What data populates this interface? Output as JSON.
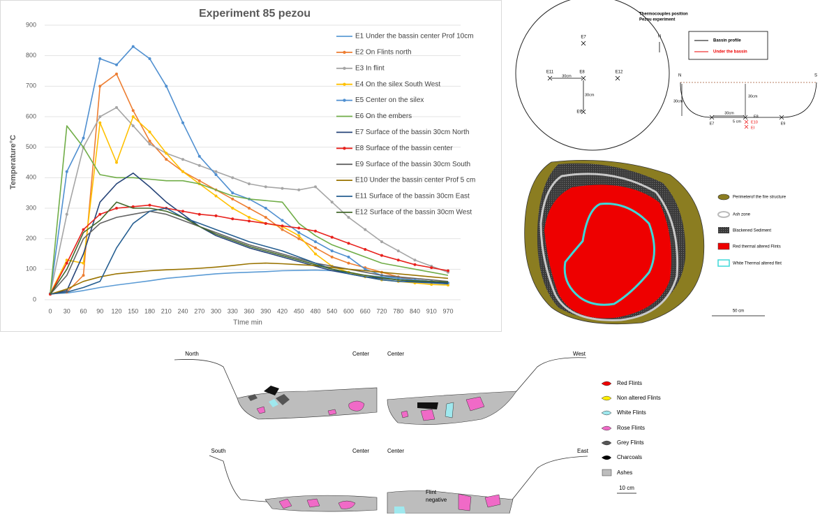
{
  "chart_data": {
    "type": "line",
    "title": "Experiment 85 pezou",
    "x_label": "TIme min",
    "y_label": "Temperature°C",
    "categories": [
      "0",
      "30",
      "60",
      "90",
      "120",
      "150",
      "180",
      "210",
      "240",
      "270",
      "300",
      "330",
      "360",
      "390",
      "420",
      "450",
      "480",
      "540",
      "600",
      "660",
      "720",
      "780",
      "840",
      "910",
      "970"
    ],
    "ylim": [
      0,
      900
    ],
    "yticks": [
      0,
      100,
      200,
      300,
      400,
      500,
      600,
      700,
      800,
      900
    ],
    "grid": true,
    "series": [
      {
        "name": "E1 Under the bassin center Prof 10cm",
        "color": "#5b9bd5",
        "values": [
          20,
          22,
          30,
          40,
          48,
          55,
          62,
          70,
          75,
          80,
          85,
          88,
          90,
          92,
          95,
          96,
          97,
          95,
          90,
          80,
          75,
          70,
          65,
          60,
          55
        ]
      },
      {
        "name": "E2 On Flints north",
        "color": "#ed7d31",
        "marker": true,
        "values": [
          18,
          25,
          80,
          700,
          740,
          620,
          520,
          460,
          420,
          390,
          360,
          330,
          300,
          270,
          230,
          200,
          170,
          140,
          120,
          105,
          90,
          75,
          65,
          60,
          55
        ]
      },
      {
        "name": "E3 In flint",
        "color": "#a5a5a5",
        "marker": true,
        "values": [
          20,
          280,
          500,
          600,
          630,
          570,
          510,
          480,
          460,
          440,
          420,
          400,
          380,
          370,
          365,
          360,
          370,
          320,
          270,
          230,
          190,
          160,
          130,
          110,
          90
        ]
      },
      {
        "name": "E4 On the silex South West",
        "color": "#ffc000",
        "marker": true,
        "values": [
          20,
          130,
          120,
          580,
          450,
          600,
          550,
          480,
          420,
          380,
          340,
          300,
          270,
          250,
          240,
          210,
          150,
          110,
          90,
          75,
          65,
          60,
          55,
          50,
          48
        ]
      },
      {
        "name": "E5 Center on the silex",
        "color": "#4f8fd0",
        "marker": true,
        "values": [
          20,
          420,
          530,
          790,
          770,
          830,
          790,
          700,
          580,
          470,
          410,
          350,
          330,
          300,
          260,
          220,
          190,
          160,
          140,
          100,
          80,
          70,
          65,
          60,
          55
        ]
      },
      {
        "name": "E6 On the embers",
        "color": "#70ad47",
        "values": [
          20,
          570,
          500,
          410,
          400,
          400,
          395,
          390,
          390,
          380,
          360,
          340,
          330,
          325,
          320,
          250,
          210,
          180,
          160,
          140,
          120,
          110,
          100,
          90,
          80
        ]
      },
      {
        "name": "E7 Surface of the bassin 30cm North",
        "color": "#264478",
        "values": [
          18,
          30,
          150,
          320,
          380,
          415,
          370,
          320,
          280,
          240,
          210,
          190,
          170,
          155,
          140,
          125,
          110,
          95,
          85,
          75,
          70,
          65,
          60,
          58,
          55
        ]
      },
      {
        "name": "E8 Surface of the bassin center",
        "color": "#e8211c",
        "marker": true,
        "values": [
          18,
          120,
          230,
          280,
          300,
          305,
          310,
          300,
          290,
          280,
          275,
          265,
          258,
          250,
          242,
          235,
          225,
          205,
          185,
          165,
          145,
          130,
          115,
          105,
          95
        ]
      },
      {
        "name": "E9 Surface of the bassin 30cm South",
        "color": "#636363",
        "values": [
          18,
          80,
          200,
          250,
          270,
          280,
          290,
          280,
          260,
          240,
          220,
          200,
          180,
          165,
          150,
          135,
          120,
          110,
          100,
          90,
          80,
          75,
          70,
          65,
          60
        ]
      },
      {
        "name": "E10 Under the bassin center Prof 5 cm",
        "color": "#997300",
        "values": [
          18,
          35,
          60,
          75,
          85,
          90,
          95,
          98,
          100,
          103,
          107,
          112,
          118,
          120,
          118,
          115,
          112,
          105,
          100,
          95,
          90,
          85,
          80,
          75,
          70
        ]
      },
      {
        "name": "E11 Surface of the bassin 30cm East",
        "color": "#255e91",
        "values": [
          18,
          25,
          40,
          60,
          170,
          250,
          290,
          300,
          270,
          250,
          230,
          210,
          190,
          175,
          160,
          140,
          120,
          100,
          85,
          75,
          65,
          60,
          58,
          55,
          52
        ]
      },
      {
        "name": "E12 Surface of the bassin 30cm West",
        "color": "#43682b",
        "values": [
          18,
          100,
          220,
          260,
          320,
          300,
          300,
          290,
          270,
          240,
          215,
          195,
          175,
          160,
          145,
          130,
          115,
          100,
          90,
          80,
          72,
          65,
          62,
          60,
          58
        ]
      }
    ]
  },
  "thermocouples": {
    "title": "Thermocouples position",
    "subtitle": "Pezou experiment",
    "north": "N",
    "labels": [
      "E7",
      "E11",
      "E8",
      "E12",
      "E9"
    ],
    "distances": [
      "30cm",
      "30cm"
    ],
    "legend": [
      "Bassin profile",
      "Under the bassin"
    ],
    "profile": {
      "left": "N",
      "right": "S",
      "depth": "30cm",
      "vertical": "30cm",
      "horizontal": "30cm",
      "offset": "5 cm",
      "points": [
        "E7",
        "E8",
        "E9",
        "E10",
        "EI"
      ]
    }
  },
  "plan": {
    "legend": [
      "Perimeterof  the fire structure",
      "Ash zone",
      "Blackened Sediment",
      "Red thermal altered Flints",
      "White Thermal altered flint"
    ],
    "scale": "50 cm"
  },
  "sections": {
    "labels": [
      "North",
      "Center",
      "Center",
      "West",
      "South",
      "Center",
      "Center",
      "East"
    ],
    "note": [
      "Flint",
      "negative"
    ],
    "legend": [
      "Red Flints",
      "Non altered Flints",
      "White Flints",
      "Rose Flints",
      "Grey Flints",
      "Charcoals",
      "Ashes"
    ],
    "scale": "10 cm"
  }
}
